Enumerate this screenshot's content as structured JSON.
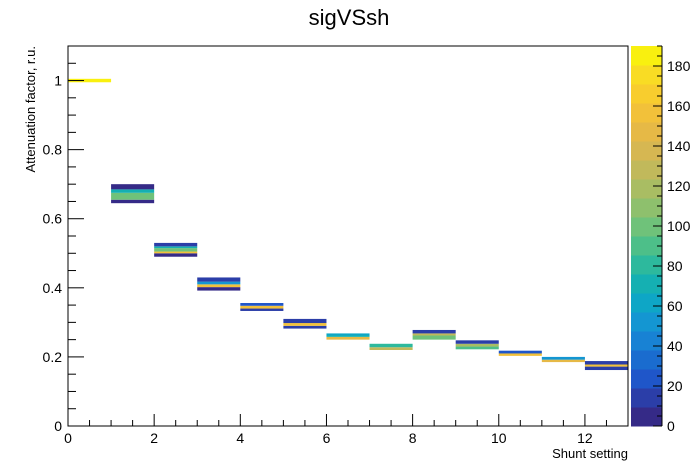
{
  "chart_data": {
    "type": "heatmap",
    "title": "sigVSsh",
    "xlabel": "Shunt setting",
    "ylabel": "Attenuation factor, r.u.",
    "xlim": [
      0,
      13
    ],
    "ylim": [
      0,
      1.1
    ],
    "x_ticks": [
      "0",
      "2",
      "4",
      "6",
      "8",
      "10",
      "12"
    ],
    "y_ticks": [
      "0",
      "0.2",
      "0.4",
      "0.6",
      "0.8",
      "1"
    ],
    "colorbar": {
      "range": [
        0,
        190
      ],
      "ticks": [
        "0",
        "20",
        "40",
        "60",
        "80",
        "100",
        "120",
        "140",
        "160",
        "180"
      ],
      "palette": [
        "#352a87",
        "#2b3ea8",
        "#1f56c9",
        "#1a6ccf",
        "#1882d4",
        "#1496d2",
        "#0ea6c6",
        "#15b0b2",
        "#2db99d",
        "#4dbf89",
        "#6fc27a",
        "#8ec06d",
        "#a9bd63",
        "#c1b95b",
        "#d6b752",
        "#e6b946",
        "#f2c13a",
        "#f8cd2e",
        "#f9dc24",
        "#f9f00f"
      ]
    },
    "cells": [
      {
        "x0": 0,
        "x1": 1,
        "y0": 0.995,
        "y1": 1.005,
        "count": 190
      },
      {
        "x0": 1,
        "x1": 2,
        "y0": 0.645,
        "y1": 0.655,
        "count": 8
      },
      {
        "x0": 1,
        "x1": 2,
        "y0": 0.655,
        "y1": 0.675,
        "count": 95
      },
      {
        "x0": 1,
        "x1": 2,
        "y0": 0.675,
        "y1": 0.685,
        "count": 70
      },
      {
        "x0": 1,
        "x1": 2,
        "y0": 0.685,
        "y1": 0.7,
        "count": 8
      },
      {
        "x0": 2,
        "x1": 3,
        "y0": 0.49,
        "y1": 0.5,
        "count": 8
      },
      {
        "x0": 2,
        "x1": 3,
        "y0": 0.5,
        "y1": 0.505,
        "count": 160
      },
      {
        "x0": 2,
        "x1": 3,
        "y0": 0.505,
        "y1": 0.515,
        "count": 95
      },
      {
        "x0": 2,
        "x1": 3,
        "y0": 0.515,
        "y1": 0.52,
        "count": 75
      },
      {
        "x0": 2,
        "x1": 3,
        "y0": 0.52,
        "y1": 0.53,
        "count": 15
      },
      {
        "x0": 3,
        "x1": 4,
        "y0": 0.392,
        "y1": 0.402,
        "count": 8
      },
      {
        "x0": 3,
        "x1": 4,
        "y0": 0.402,
        "y1": 0.41,
        "count": 160
      },
      {
        "x0": 3,
        "x1": 4,
        "y0": 0.41,
        "y1": 0.418,
        "count": 55
      },
      {
        "x0": 3,
        "x1": 4,
        "y0": 0.418,
        "y1": 0.43,
        "count": 15
      },
      {
        "x0": 4,
        "x1": 5,
        "y0": 0.333,
        "y1": 0.34,
        "count": 15
      },
      {
        "x0": 4,
        "x1": 5,
        "y0": 0.34,
        "y1": 0.348,
        "count": 160
      },
      {
        "x0": 4,
        "x1": 5,
        "y0": 0.348,
        "y1": 0.356,
        "count": 20
      },
      {
        "x0": 5,
        "x1": 6,
        "y0": 0.282,
        "y1": 0.29,
        "count": 15
      },
      {
        "x0": 5,
        "x1": 6,
        "y0": 0.29,
        "y1": 0.298,
        "count": 160
      },
      {
        "x0": 5,
        "x1": 6,
        "y0": 0.298,
        "y1": 0.31,
        "count": 15
      },
      {
        "x0": 6,
        "x1": 7,
        "y0": 0.25,
        "y1": 0.258,
        "count": 150
      },
      {
        "x0": 6,
        "x1": 7,
        "y0": 0.258,
        "y1": 0.262,
        "count": 75
      },
      {
        "x0": 6,
        "x1": 7,
        "y0": 0.262,
        "y1": 0.268,
        "count": 60
      },
      {
        "x0": 7,
        "x1": 8,
        "y0": 0.22,
        "y1": 0.228,
        "count": 130
      },
      {
        "x0": 7,
        "x1": 8,
        "y0": 0.228,
        "y1": 0.238,
        "count": 85
      },
      {
        "x0": 8,
        "x1": 9,
        "y0": 0.25,
        "y1": 0.262,
        "count": 95
      },
      {
        "x0": 8,
        "x1": 9,
        "y0": 0.262,
        "y1": 0.268,
        "count": 130
      },
      {
        "x0": 8,
        "x1": 9,
        "y0": 0.268,
        "y1": 0.278,
        "count": 15
      },
      {
        "x0": 9,
        "x1": 10,
        "y0": 0.222,
        "y1": 0.23,
        "count": 90
      },
      {
        "x0": 9,
        "x1": 10,
        "y0": 0.23,
        "y1": 0.238,
        "count": 120
      },
      {
        "x0": 9,
        "x1": 10,
        "y0": 0.238,
        "y1": 0.248,
        "count": 15
      },
      {
        "x0": 10,
        "x1": 11,
        "y0": 0.203,
        "y1": 0.21,
        "count": 160
      },
      {
        "x0": 10,
        "x1": 11,
        "y0": 0.21,
        "y1": 0.218,
        "count": 20
      },
      {
        "x0": 11,
        "x1": 12,
        "y0": 0.185,
        "y1": 0.192,
        "count": 150
      },
      {
        "x0": 11,
        "x1": 12,
        "y0": 0.192,
        "y1": 0.2,
        "count": 50
      },
      {
        "x0": 12,
        "x1": 13,
        "y0": 0.162,
        "y1": 0.172,
        "count": 15
      },
      {
        "x0": 12,
        "x1": 13,
        "y0": 0.172,
        "y1": 0.178,
        "count": 160
      },
      {
        "x0": 12,
        "x1": 13,
        "y0": 0.178,
        "y1": 0.188,
        "count": 15
      }
    ]
  }
}
